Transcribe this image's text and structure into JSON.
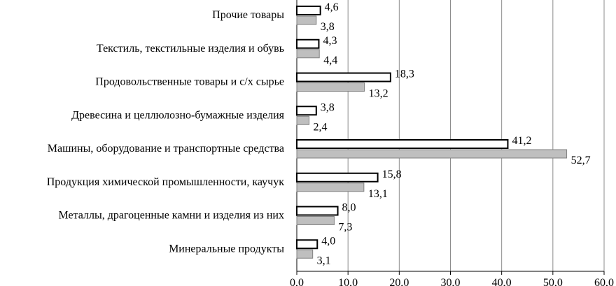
{
  "chart_data": {
    "type": "bar",
    "orientation": "horizontal",
    "categories": [
      "Прочие товары",
      "Текстиль, текстильные изделия и обувь",
      "Продовольственные товары и с/х сырье",
      "Древесина и целлюлозно-бумажные изделия",
      "Машины, оборудование и транспортные средства",
      "Продукция химической промышленности, каучук",
      "Металлы, драгоценные камни и изделия из них",
      "Минеральные продукты"
    ],
    "series": [
      {
        "values": [
          4.6,
          4.3,
          18.3,
          3.8,
          41.2,
          15.8,
          8.0,
          4.0
        ],
        "labels": [
          "4,6",
          "4,3",
          "18,3",
          "3,8",
          "41,2",
          "15,8",
          "8,0",
          "4,0"
        ],
        "color": "#ffffff",
        "stroke": "#000000"
      },
      {
        "values": [
          3.8,
          4.4,
          13.2,
          2.4,
          52.7,
          13.1,
          7.3,
          3.1
        ],
        "labels": [
          "3,8",
          "4,4",
          "13,2",
          "2,4",
          "52,7",
          "13,1",
          "7,3",
          "3,1"
        ],
        "color": "#bfbfbf",
        "stroke": "#808080"
      }
    ],
    "xlim": [
      0,
      60
    ],
    "xticks": [
      "0,0",
      "10,0",
      "20,0",
      "30,0",
      "40,0",
      "50,0",
      "60,0"
    ],
    "grid": "vertical",
    "title": "",
    "xlabel": "",
    "ylabel": ""
  }
}
